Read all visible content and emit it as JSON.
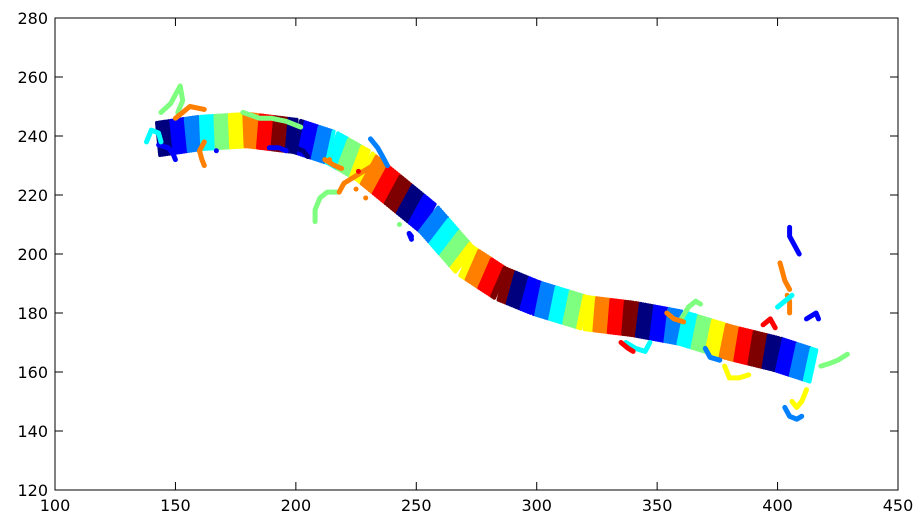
{
  "chart_data": {
    "type": "scatter",
    "title": "",
    "xlabel": "",
    "ylabel": "",
    "xlim": [
      100,
      450
    ],
    "ylim": [
      120,
      280
    ],
    "xticks": [
      100,
      150,
      200,
      250,
      300,
      350,
      400,
      450
    ],
    "yticks": [
      120,
      140,
      160,
      180,
      200,
      220,
      240,
      260,
      280
    ],
    "grid": false,
    "legend": "none",
    "colormap": "jet",
    "colors": [
      "#00007f",
      "#0000ff",
      "#007fff",
      "#00ffff",
      "#7fff7f",
      "#ffff00",
      "#ff7f00",
      "#ff0000",
      "#7f0000"
    ],
    "track_centerline": [
      [
        143,
        239
      ],
      [
        160,
        241
      ],
      [
        180,
        242
      ],
      [
        200,
        240
      ],
      [
        215,
        236
      ],
      [
        228,
        230
      ],
      [
        240,
        222
      ],
      [
        255,
        212
      ],
      [
        270,
        198
      ],
      [
        285,
        190
      ],
      [
        300,
        185
      ],
      [
        320,
        180
      ],
      [
        340,
        178
      ],
      [
        360,
        175
      ],
      [
        380,
        170
      ],
      [
        400,
        166
      ],
      [
        415,
        162
      ]
    ],
    "track_halfwidth": 5.5,
    "stray_paths": [
      {
        "color": "#7fff7f",
        "points": [
          [
            144,
            248
          ],
          [
            148,
            251
          ],
          [
            150,
            254
          ],
          [
            152,
            257
          ],
          [
            153,
            252
          ],
          [
            151,
            248
          ]
        ]
      },
      {
        "color": "#7fff7f",
        "points": [
          [
            178,
            248
          ],
          [
            185,
            246
          ],
          [
            190,
            246
          ],
          [
            196,
            245
          ],
          [
            202,
            243
          ]
        ]
      },
      {
        "color": "#ff7f00",
        "points": [
          [
            162,
            238
          ],
          [
            160,
            235
          ],
          [
            161,
            232
          ],
          [
            162,
            230
          ]
        ]
      },
      {
        "color": "#ff7f00",
        "points": [
          [
            150,
            246
          ],
          [
            153,
            248
          ],
          [
            156,
            250
          ],
          [
            162,
            249
          ]
        ]
      },
      {
        "color": "#0000ff",
        "points": [
          [
            143,
            237
          ],
          [
            147,
            236
          ],
          [
            149,
            234
          ],
          [
            150,
            232
          ]
        ]
      },
      {
        "color": "#00ffff",
        "points": [
          [
            138,
            238
          ],
          [
            140,
            242
          ],
          [
            143,
            241
          ],
          [
            144,
            238
          ]
        ]
      },
      {
        "color": "#7fff7f",
        "points": [
          [
            208,
            211
          ],
          [
            208,
            215
          ],
          [
            210,
            219
          ],
          [
            213,
            221
          ],
          [
            218,
            221
          ]
        ]
      },
      {
        "color": "#ff7f00",
        "points": [
          [
            218,
            221
          ],
          [
            220,
            224
          ],
          [
            224,
            226
          ],
          [
            228,
            228
          ],
          [
            232,
            230
          ]
        ]
      },
      {
        "color": "#007fff",
        "points": [
          [
            231,
            239
          ],
          [
            234,
            236
          ],
          [
            236,
            233
          ],
          [
            238,
            230
          ]
        ]
      },
      {
        "color": "#ff7f00",
        "points": [
          [
            212,
            232
          ],
          [
            216,
            230
          ],
          [
            219,
            229
          ]
        ]
      },
      {
        "color": "#0000ff",
        "points": [
          [
            248,
            205
          ],
          [
            247,
            207
          ],
          [
            248,
            206
          ]
        ]
      },
      {
        "color": "#0000ff",
        "points": [
          [
            405,
            209
          ],
          [
            405,
            206
          ],
          [
            407,
            203
          ],
          [
            409,
            200
          ]
        ]
      },
      {
        "color": "#ff7f00",
        "points": [
          [
            401,
            197
          ],
          [
            402,
            194
          ],
          [
            403,
            191
          ],
          [
            405,
            188
          ]
        ]
      },
      {
        "color": "#ff7f00",
        "points": [
          [
            404,
            186
          ],
          [
            405,
            184
          ],
          [
            405,
            180
          ]
        ]
      },
      {
        "color": "#00ffff",
        "points": [
          [
            400,
            182
          ],
          [
            403,
            184
          ],
          [
            406,
            186
          ]
        ]
      },
      {
        "color": "#0000ff",
        "points": [
          [
            412,
            178
          ],
          [
            416,
            180
          ],
          [
            417,
            178
          ]
        ]
      },
      {
        "color": "#007fff",
        "points": [
          [
            403,
            148
          ],
          [
            405,
            145
          ],
          [
            408,
            144
          ],
          [
            410,
            145
          ]
        ]
      },
      {
        "color": "#ffff00",
        "points": [
          [
            406,
            150
          ],
          [
            408,
            148
          ],
          [
            410,
            150
          ],
          [
            412,
            154
          ]
        ]
      },
      {
        "color": "#7fff7f",
        "points": [
          [
            418,
            162
          ],
          [
            422,
            163
          ],
          [
            425,
            164
          ],
          [
            429,
            166
          ]
        ]
      },
      {
        "color": "#7fff7f",
        "points": [
          [
            360,
            178
          ],
          [
            363,
            182
          ],
          [
            366,
            184
          ],
          [
            368,
            183
          ]
        ]
      },
      {
        "color": "#ffff00",
        "points": [
          [
            378,
            162
          ],
          [
            380,
            158
          ],
          [
            384,
            158
          ],
          [
            388,
            159
          ]
        ]
      },
      {
        "color": "#007fff",
        "points": [
          [
            370,
            168
          ],
          [
            372,
            165
          ],
          [
            376,
            164
          ]
        ]
      },
      {
        "color": "#00ffff",
        "points": [
          [
            337,
            170
          ],
          [
            341,
            168
          ],
          [
            345,
            167
          ],
          [
            347,
            170
          ]
        ]
      },
      {
        "color": "#ff0000",
        "points": [
          [
            335,
            170
          ],
          [
            338,
            168
          ],
          [
            340,
            167
          ]
        ]
      },
      {
        "color": "#ff0000",
        "points": [
          [
            394,
            176
          ],
          [
            397,
            178
          ],
          [
            399,
            175
          ]
        ]
      },
      {
        "color": "#ff7f00",
        "points": [
          [
            354,
            180
          ],
          [
            357,
            178
          ],
          [
            361,
            177
          ]
        ]
      },
      {
        "color": "#0000ff",
        "points": [
          [
            189,
            236
          ],
          [
            193,
            236
          ],
          [
            196,
            235
          ]
        ]
      },
      {
        "color": "#00007f",
        "points": [
          [
            200,
            236
          ],
          [
            203,
            235
          ],
          [
            205,
            233
          ]
        ]
      }
    ],
    "stray_points": [
      {
        "color": "#ff7f00",
        "x": 225,
        "y": 222
      },
      {
        "color": "#ff7f00",
        "x": 229,
        "y": 219
      },
      {
        "color": "#ff7f00",
        "x": 214,
        "y": 232
      },
      {
        "color": "#7fff7f",
        "x": 243,
        "y": 210
      },
      {
        "color": "#0000ff",
        "x": 167,
        "y": 235
      },
      {
        "color": "#ff0000",
        "x": 226,
        "y": 228
      }
    ]
  }
}
